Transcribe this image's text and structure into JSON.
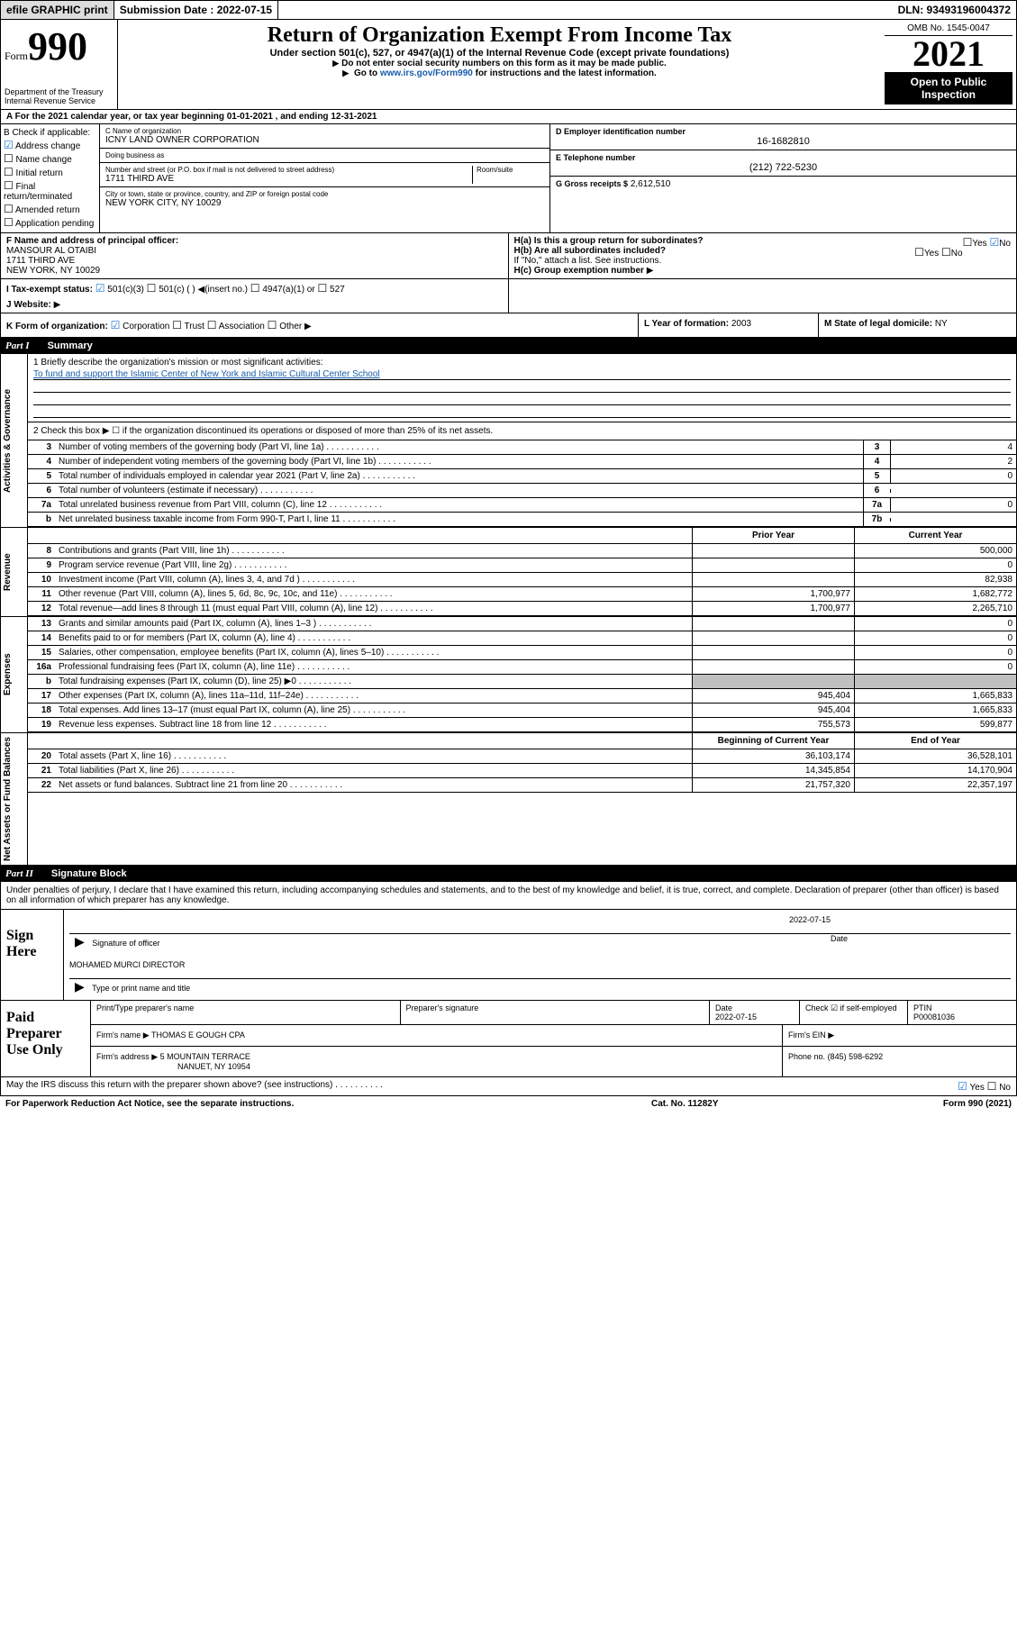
{
  "top": {
    "efile": "efile GRAPHIC print",
    "submission_label": "Submission Date :",
    "submission_date": "2022-07-15",
    "dln": "DLN: 93493196004372"
  },
  "header": {
    "form_label": "Form",
    "form_number": "990",
    "dept": "Department of the Treasury\nInternal Revenue Service",
    "title": "Return of Organization Exempt From Income Tax",
    "subtitle": "Under section 501(c), 527, or 4947(a)(1) of the Internal Revenue Code (except private foundations)",
    "instr1": "Do not enter social security numbers on this form as it may be made public.",
    "instr2_prefix": "Go to ",
    "instr2_link": "www.irs.gov/Form990",
    "instr2_suffix": " for instructions and the latest information.",
    "omb": "OMB No. 1545-0047",
    "year": "2021",
    "open_public": "Open to Public Inspection"
  },
  "rowA": "A For the 2021 calendar year, or tax year beginning 01-01-2021    , and ending 12-31-2021",
  "colB": {
    "label": "B Check if applicable:",
    "addr_change": "Address change",
    "name_change": "Name change",
    "initial": "Initial return",
    "final": "Final return/terminated",
    "amended": "Amended return",
    "app_pending": "Application pending"
  },
  "colC": {
    "name_label": "C Name of organization",
    "name": "ICNY LAND OWNER CORPORATION",
    "dba_label": "Doing business as",
    "street_label": "Number and street (or P.O. box if mail is not delivered to street address)",
    "room_label": "Room/suite",
    "street": "1711 THIRD AVE",
    "city_label": "City or town, state or province, country, and ZIP or foreign postal code",
    "city": "NEW YORK CITY, NY  10029"
  },
  "colD": {
    "ein_label": "D Employer identification number",
    "ein": "16-1682810",
    "phone_label": "E Telephone number",
    "phone": "(212) 722-5230",
    "gross_label": "G Gross receipts $",
    "gross": "2,612,510"
  },
  "rowF": {
    "label": "F  Name and address of principal officer:",
    "name": "MANSOUR AL OTAIBI",
    "addr1": "1711 THIRD AVE",
    "addr2": "NEW YORK, NY  10029"
  },
  "rowH": {
    "a": "H(a)  Is this a group return for subordinates?",
    "a_yes": "Yes",
    "a_no": "No",
    "b": "H(b)  Are all subordinates included?",
    "b_yes": "Yes",
    "b_no": "No",
    "b_note": "If \"No,\" attach a list. See instructions.",
    "c": "H(c)  Group exemption number"
  },
  "rowI": {
    "label": "I    Tax-exempt status:",
    "opt1": "501(c)(3)",
    "opt2": "501(c) (  )",
    "opt2_note": "(insert no.)",
    "opt3": "4947(a)(1) or",
    "opt4": "527"
  },
  "rowJ": {
    "label": "J   Website:"
  },
  "rowK": {
    "label": "K Form of organization:",
    "corp": "Corporation",
    "trust": "Trust",
    "assoc": "Association",
    "other": "Other",
    "L_label": "L Year of formation:",
    "L_val": "2003",
    "M_label": "M State of legal domicile:",
    "M_val": "NY"
  },
  "part1": {
    "header_part": "Part I",
    "header_title": "Summary",
    "tab_gov": "Activities & Governance",
    "tab_rev": "Revenue",
    "tab_exp": "Expenses",
    "tab_net": "Net Assets or Fund Balances",
    "line1_label": "1  Briefly describe the organization's mission or most significant activities:",
    "line1_mission": "To fund and support the Islamic Center of New York and Islamic Cultural Center School",
    "line2": "2   Check this box ▶ ☐  if the organization discontinued its operations or disposed of more than 25% of its net assets.",
    "rows_gov": [
      {
        "n": "3",
        "t": "Number of voting members of the governing body (Part VI, line 1a)",
        "box": "3",
        "v": "4"
      },
      {
        "n": "4",
        "t": "Number of independent voting members of the governing body (Part VI, line 1b)",
        "box": "4",
        "v": "2"
      },
      {
        "n": "5",
        "t": "Total number of individuals employed in calendar year 2021 (Part V, line 2a)",
        "box": "5",
        "v": "0"
      },
      {
        "n": "6",
        "t": "Total number of volunteers (estimate if necessary)",
        "box": "6",
        "v": ""
      },
      {
        "n": "7a",
        "t": "Total unrelated business revenue from Part VIII, column (C), line 12",
        "box": "7a",
        "v": "0"
      },
      {
        "n": "b",
        "t": "Net unrelated business taxable income from Form 990-T, Part I, line 11",
        "box": "7b",
        "v": ""
      }
    ],
    "fin_header_py": "Prior Year",
    "fin_header_cy": "Current Year",
    "rows_rev": [
      {
        "n": "8",
        "t": "Contributions and grants (Part VIII, line 1h)",
        "py": "",
        "cy": "500,000"
      },
      {
        "n": "9",
        "t": "Program service revenue (Part VIII, line 2g)",
        "py": "",
        "cy": "0"
      },
      {
        "n": "10",
        "t": "Investment income (Part VIII, column (A), lines 3, 4, and 7d )",
        "py": "",
        "cy": "82,938"
      },
      {
        "n": "11",
        "t": "Other revenue (Part VIII, column (A), lines 5, 6d, 8c, 9c, 10c, and 11e)",
        "py": "1,700,977",
        "cy": "1,682,772"
      },
      {
        "n": "12",
        "t": "Total revenue—add lines 8 through 11 (must equal Part VIII, column (A), line 12)",
        "py": "1,700,977",
        "cy": "2,265,710"
      }
    ],
    "rows_exp": [
      {
        "n": "13",
        "t": "Grants and similar amounts paid (Part IX, column (A), lines 1–3 )",
        "py": "",
        "cy": "0"
      },
      {
        "n": "14",
        "t": "Benefits paid to or for members (Part IX, column (A), line 4)",
        "py": "",
        "cy": "0"
      },
      {
        "n": "15",
        "t": "Salaries, other compensation, employee benefits (Part IX, column (A), lines 5–10)",
        "py": "",
        "cy": "0"
      },
      {
        "n": "16a",
        "t": "Professional fundraising fees (Part IX, column (A), line 11e)",
        "py": "",
        "cy": "0"
      },
      {
        "n": "b",
        "t": "Total fundraising expenses (Part IX, column (D), line 25) ▶0",
        "py": "grey",
        "cy": "grey"
      },
      {
        "n": "17",
        "t": "Other expenses (Part IX, column (A), lines 11a–11d, 11f–24e)",
        "py": "945,404",
        "cy": "1,665,833"
      },
      {
        "n": "18",
        "t": "Total expenses. Add lines 13–17 (must equal Part IX, column (A), line 25)",
        "py": "945,404",
        "cy": "1,665,833"
      },
      {
        "n": "19",
        "t": "Revenue less expenses. Subtract line 18 from line 12",
        "py": "755,573",
        "cy": "599,877"
      }
    ],
    "fin_header_boy": "Beginning of Current Year",
    "fin_header_eoy": "End of Year",
    "rows_net": [
      {
        "n": "20",
        "t": "Total assets (Part X, line 16)",
        "py": "36,103,174",
        "cy": "36,528,101"
      },
      {
        "n": "21",
        "t": "Total liabilities (Part X, line 26)",
        "py": "14,345,854",
        "cy": "14,170,904"
      },
      {
        "n": "22",
        "t": "Net assets or fund balances. Subtract line 21 from line 20",
        "py": "21,757,320",
        "cy": "22,357,197"
      }
    ]
  },
  "part2": {
    "header_part": "Part II",
    "header_title": "Signature Block",
    "declare": "Under penalties of perjury, I declare that I have examined this return, including accompanying schedules and statements, and to the best of my knowledge and belief, it is true, correct, and complete. Declaration of preparer (other than officer) is based on all information of which preparer has any knowledge.",
    "sign_here": "Sign Here",
    "sig_officer_label": "Signature of officer",
    "sig_date_label": "Date",
    "sig_date": "2022-07-15",
    "officer_name": "MOHAMED MURCI  DIRECTOR",
    "officer_name_label": "Type or print name and title",
    "paid_prep": "Paid Preparer Use Only",
    "prep_name_label": "Print/Type preparer's name",
    "prep_sig_label": "Preparer's signature",
    "prep_date_label": "Date",
    "prep_date": "2022-07-15",
    "prep_check_label": "Check ☑ if self-employed",
    "ptin_label": "PTIN",
    "ptin": "P00081036",
    "firm_name_label": "Firm's name    ▶",
    "firm_name": "THOMAS E GOUGH CPA",
    "firm_ein_label": "Firm's EIN ▶",
    "firm_addr_label": "Firm's address ▶",
    "firm_addr1": "5 MOUNTAIN TERRACE",
    "firm_addr2": "NANUET, NY  10954",
    "firm_phone_label": "Phone no.",
    "firm_phone": "(845) 598-6292",
    "discuss": "May the IRS discuss this return with the preparer shown above? (see instructions)",
    "discuss_yes": "Yes",
    "discuss_no": "No"
  },
  "footer": {
    "paperwork": "For Paperwork Reduction Act Notice, see the separate instructions.",
    "cat": "Cat. No. 11282Y",
    "form": "Form 990 (2021)"
  }
}
